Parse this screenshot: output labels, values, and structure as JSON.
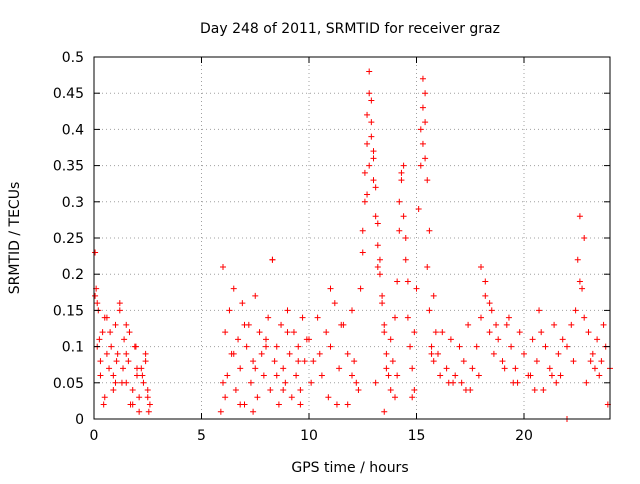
{
  "chart_data": {
    "type": "scatter",
    "title": "Day 248 of 2011, SRMTID for receiver graz",
    "xlabel": "GPS time / hours",
    "ylabel": "SRMTID / TECUs",
    "xlim": [
      0,
      24
    ],
    "ylim": [
      0,
      0.5
    ],
    "x_ticks": [
      0,
      5,
      10,
      15,
      20
    ],
    "x_tick_labels": [
      "0",
      "5",
      "10",
      "15",
      "20"
    ],
    "y_ticks": [
      0,
      0.05,
      0.1,
      0.15,
      0.2,
      0.25,
      0.3,
      0.35,
      0.4,
      0.45,
      0.5
    ],
    "y_tick_labels": [
      "0",
      "0.05",
      "0.1",
      "0.15",
      "0.2",
      "0.25",
      "0.3",
      "0.35",
      "0.4",
      "0.45",
      "0.5"
    ],
    "grid": true,
    "legend": "none",
    "marker": "+",
    "color": "#ff0000",
    "series": [
      {
        "name": "SRMTID",
        "x": [
          0.05,
          0.1,
          0.15,
          0.2,
          0.25,
          0.3,
          0.4,
          0.5,
          0.6,
          0.7,
          0.8,
          0.9,
          1.0,
          1.1,
          1.2,
          1.3,
          1.4,
          1.5,
          1.6,
          1.7,
          1.8,
          1.9,
          2.0,
          2.1,
          2.2,
          2.3,
          2.4,
          2.5,
          2.6,
          0.05,
          0.15,
          0.3,
          0.45,
          0.6,
          0.75,
          0.9,
          1.05,
          1.2,
          1.35,
          1.5,
          1.65,
          1.8,
          1.95,
          2.1,
          2.25,
          2.4,
          2.55,
          0.5,
          1.0,
          1.5,
          2.0,
          2.5,
          5.9,
          6.0,
          6.1,
          6.2,
          6.3,
          6.4,
          6.5,
          6.6,
          6.7,
          6.8,
          6.9,
          7.0,
          7.1,
          7.2,
          7.3,
          7.4,
          7.5,
          7.6,
          7.7,
          7.8,
          7.9,
          8.0,
          8.1,
          8.2,
          8.3,
          8.4,
          8.5,
          8.6,
          8.7,
          8.8,
          8.9,
          9.0,
          9.1,
          9.2,
          9.3,
          9.4,
          9.5,
          9.6,
          9.7,
          9.8,
          9.9,
          6.0,
          6.5,
          7.0,
          7.5,
          8.0,
          8.5,
          9.0,
          9.5,
          8.3,
          6.1,
          6.8,
          7.4,
          8.8,
          9.6,
          10.0,
          10.2,
          10.4,
          10.6,
          10.8,
          11.0,
          11.2,
          11.4,
          11.6,
          11.8,
          12.0,
          12.2,
          12.4,
          12.5,
          12.6,
          12.7,
          12.8,
          12.9,
          13.0,
          13.1,
          13.2,
          13.3,
          13.4,
          13.5,
          13.6,
          13.7,
          13.8,
          13.9,
          14.0,
          14.1,
          14.2,
          14.3,
          14.4,
          14.5,
          14.6,
          14.7,
          14.8,
          14.9,
          15.0,
          15.1,
          15.2,
          15.3,
          15.4,
          15.5,
          15.6,
          15.7,
          15.8,
          15.9,
          12.5,
          12.6,
          12.7,
          12.8,
          12.9,
          13.0,
          13.1,
          13.2,
          13.3,
          13.4,
          13.5,
          12.8,
          12.9,
          13.0,
          12.7,
          13.2,
          14.2,
          14.3,
          14.4,
          14.5,
          14.6,
          15.2,
          15.3,
          15.4,
          15.5,
          15.6,
          15.3,
          15.4,
          13.6,
          13.8,
          14.0,
          11.0,
          11.5,
          12.0,
          10.5,
          11.8,
          12.3,
          13.5,
          14.8,
          15.8,
          10.1,
          10.9,
          11.3,
          12.1,
          13.1,
          14.1,
          14.9,
          15.7,
          16.0,
          16.2,
          16.4,
          16.6,
          16.8,
          17.0,
          17.2,
          17.4,
          17.6,
          17.8,
          18.0,
          18.2,
          18.4,
          18.6,
          18.8,
          19.0,
          19.2,
          19.4,
          19.6,
          19.8,
          20.0,
          20.2,
          20.4,
          20.6,
          20.8,
          21.0,
          21.2,
          21.4,
          21.6,
          21.8,
          22.0,
          22.2,
          22.4,
          22.6,
          22.8,
          23.0,
          23.2,
          23.4,
          23.6,
          23.8,
          24.0,
          18.0,
          18.2,
          18.4,
          22.5,
          22.6,
          22.7,
          22.8,
          17.5,
          19.5,
          21.5,
          23.5,
          16.5,
          20.5,
          22.0,
          23.9,
          16.1,
          16.7,
          17.3,
          17.9,
          18.5,
          19.1,
          19.7,
          20.3,
          20.9,
          21.7,
          22.3,
          22.9,
          23.3,
          23.7,
          17.1,
          18.7,
          20.7,
          21.3,
          23.1,
          19.3
        ],
        "y": [
          0.23,
          0.18,
          0.16,
          0.15,
          0.11,
          0.08,
          0.12,
          0.03,
          0.14,
          0.07,
          0.1,
          0.06,
          0.13,
          0.09,
          0.15,
          0.05,
          0.11,
          0.13,
          0.08,
          0.02,
          0.04,
          0.1,
          0.06,
          0.01,
          0.07,
          0.05,
          0.09,
          0.03,
          0.02,
          0.17,
          0.1,
          0.06,
          0.02,
          0.09,
          0.12,
          0.04,
          0.08,
          0.16,
          0.07,
          0.05,
          0.12,
          0.02,
          0.1,
          0.03,
          0.06,
          0.08,
          0.01,
          0.14,
          0.05,
          0.09,
          0.07,
          0.04,
          0.01,
          0.21,
          0.12,
          0.06,
          0.15,
          0.09,
          0.18,
          0.04,
          0.11,
          0.07,
          0.16,
          0.02,
          0.1,
          0.13,
          0.05,
          0.08,
          0.17,
          0.03,
          0.12,
          0.09,
          0.06,
          0.11,
          0.14,
          0.04,
          0.22,
          0.08,
          0.1,
          0.02,
          0.13,
          0.07,
          0.05,
          0.15,
          0.09,
          0.03,
          0.12,
          0.06,
          0.1,
          0.04,
          0.14,
          0.08,
          0.11,
          0.05,
          0.09,
          0.13,
          0.07,
          0.1,
          0.06,
          0.12,
          0.08,
          0.22,
          0.03,
          0.02,
          0.01,
          0.04,
          0.02,
          0.11,
          0.08,
          0.14,
          0.06,
          0.12,
          0.1,
          0.16,
          0.07,
          0.13,
          0.09,
          0.15,
          0.05,
          0.18,
          0.23,
          0.3,
          0.38,
          0.45,
          0.41,
          0.36,
          0.32,
          0.27,
          0.22,
          0.17,
          0.13,
          0.09,
          0.06,
          0.11,
          0.08,
          0.14,
          0.19,
          0.26,
          0.33,
          0.35,
          0.22,
          0.14,
          0.1,
          0.07,
          0.12,
          0.18,
          0.29,
          0.4,
          0.47,
          0.36,
          0.21,
          0.15,
          0.1,
          0.08,
          0.12,
          0.26,
          0.34,
          0.42,
          0.48,
          0.39,
          0.33,
          0.28,
          0.24,
          0.2,
          0.16,
          0.12,
          0.35,
          0.44,
          0.37,
          0.31,
          0.21,
          0.3,
          0.34,
          0.28,
          0.25,
          0.19,
          0.35,
          0.43,
          0.41,
          0.33,
          0.26,
          0.38,
          0.45,
          0.07,
          0.04,
          0.03,
          0.18,
          0.13,
          0.06,
          0.09,
          0.02,
          0.04,
          0.01,
          0.03,
          0.17,
          0.05,
          0.03,
          0.02,
          0.08,
          0.05,
          0.06,
          0.04,
          0.09,
          0.09,
          0.12,
          0.07,
          0.11,
          0.06,
          0.1,
          0.08,
          0.13,
          0.07,
          0.1,
          0.14,
          0.17,
          0.12,
          0.09,
          0.11,
          0.08,
          0.13,
          0.1,
          0.07,
          0.12,
          0.09,
          0.06,
          0.11,
          0.08,
          0.12,
          0.1,
          0.07,
          0.13,
          0.09,
          0.11,
          0.0,
          0.13,
          0.15,
          0.19,
          0.25,
          0.12,
          0.09,
          0.11,
          0.08,
          0.1,
          0.07,
          0.21,
          0.19,
          0.16,
          0.22,
          0.28,
          0.18,
          0.14,
          0.04,
          0.05,
          0.05,
          0.06,
          0.05,
          0.04,
          0.1,
          0.02,
          0.06,
          0.05,
          0.04,
          0.06,
          0.15,
          0.07,
          0.05,
          0.06,
          0.04,
          0.06,
          0.08,
          0.05,
          0.07,
          0.13,
          0.05,
          0.13,
          0.15,
          0.06,
          0.08,
          0.14
        ]
      }
    ]
  }
}
